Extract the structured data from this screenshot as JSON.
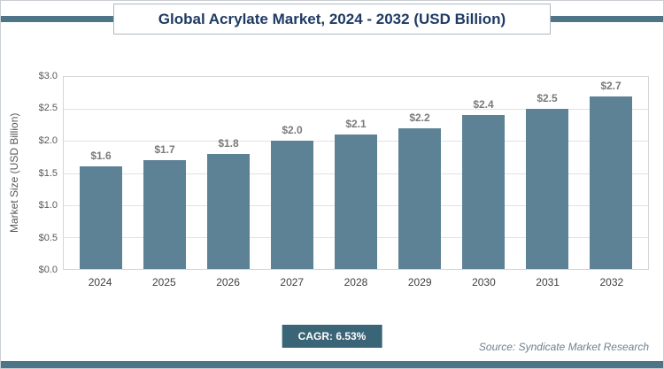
{
  "title": "Global Acrylate Market, 2024 - 2032 (USD Billion)",
  "ylabel": "Market Size (USD Billion)",
  "cagr_label": "CAGR: 6.53%",
  "source": "Source: Syndicate Market Research",
  "colors": {
    "bar": "#5d8296",
    "accent_strip": "#4e7487",
    "badge": "#3a6577",
    "title_text": "#1f3b63",
    "value_label": "#7a7a7a"
  },
  "chart_data": {
    "type": "bar",
    "title": "Global Acrylate Market, 2024 - 2032 (USD Billion)",
    "xlabel": "",
    "ylabel": "Market Size (USD Billion)",
    "categories": [
      "2024",
      "2025",
      "2026",
      "2027",
      "2028",
      "2029",
      "2030",
      "2031",
      "2032"
    ],
    "values": [
      1.6,
      1.7,
      1.8,
      2.0,
      2.1,
      2.2,
      2.4,
      2.5,
      2.7
    ],
    "value_labels": [
      "$1.6",
      "$1.7",
      "$1.8",
      "$2.0",
      "$2.1",
      "$2.2",
      "$2.4",
      "$2.5",
      "$2.7"
    ],
    "yticks": [
      "$3.0",
      "$2.5",
      "$2.0",
      "$1.5",
      "$1.0",
      "$0.5",
      "$0.0"
    ],
    "ylim": [
      0,
      3.0
    ],
    "grid": "horizontal",
    "legend": "none",
    "annotations": [
      "CAGR: 6.53%",
      "Source: Syndicate Market Research"
    ]
  }
}
